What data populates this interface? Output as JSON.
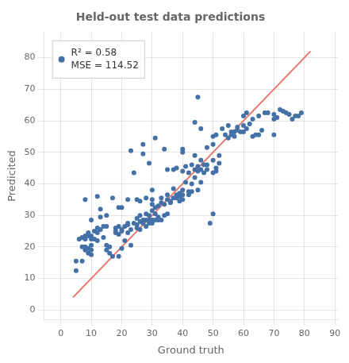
{
  "chart_data": {
    "type": "scatter",
    "title": "Held-out test data predictions",
    "xlabel": "Ground truth",
    "ylabel": "Predicited",
    "xlim": [
      -5.5,
      91
    ],
    "ylim": [
      -3,
      88
    ],
    "xticks": [
      0,
      10,
      20,
      30,
      40,
      50,
      60,
      70,
      80,
      90
    ],
    "yticks": [
      0,
      10,
      20,
      30,
      40,
      50,
      60,
      70,
      80
    ],
    "grid": true,
    "legend": "upper left",
    "series": [
      {
        "type": "line",
        "color": "#e8756a",
        "x": [
          4,
          82
        ],
        "values": [
          4,
          82
        ]
      },
      {
        "type": "scatter",
        "name": "R² = 0.58\nMSE = 114.52",
        "color": "#4470a8",
        "marker": "circle",
        "points": [
          [
            5,
            15.5
          ],
          [
            5,
            12.5
          ],
          [
            6,
            22.5
          ],
          [
            7,
            20.0
          ],
          [
            7,
            23.0
          ],
          [
            7,
            15.5
          ],
          [
            8,
            22.5
          ],
          [
            8,
            23.0
          ],
          [
            8,
            23.5
          ],
          [
            8,
            19.0
          ],
          [
            8,
            20.0
          ],
          [
            8,
            35.0
          ],
          [
            9,
            19.5
          ],
          [
            9,
            18.0
          ],
          [
            9,
            24.5
          ],
          [
            9,
            23.5
          ],
          [
            10,
            28.5
          ],
          [
            10,
            20.5
          ],
          [
            10,
            22.5
          ],
          [
            10,
            17.5
          ],
          [
            10,
            19.0
          ],
          [
            10,
            23.5
          ],
          [
            11,
            22.5
          ],
          [
            11,
            25.0
          ],
          [
            12,
            26.0
          ],
          [
            12,
            22.0
          ],
          [
            12,
            24.5
          ],
          [
            12,
            36.0
          ],
          [
            13,
            29.5
          ],
          [
            13,
            25.5
          ],
          [
            13,
            32.0
          ],
          [
            14,
            26.5
          ],
          [
            14,
            23.0
          ],
          [
            15,
            19.0
          ],
          [
            15,
            20.5
          ],
          [
            15,
            26.5
          ],
          [
            15,
            30.0
          ],
          [
            16,
            18.0
          ],
          [
            16,
            20.0
          ],
          [
            17,
            17.0
          ],
          [
            17,
            35.5
          ],
          [
            18,
            26.0
          ],
          [
            18,
            24.5
          ],
          [
            18,
            25.0
          ],
          [
            19,
            24.0
          ],
          [
            19,
            17.0
          ],
          [
            19,
            26.5
          ],
          [
            19,
            32.5
          ],
          [
            20,
            19.5
          ],
          [
            20,
            25.5
          ],
          [
            20,
            25.0
          ],
          [
            20,
            32.5
          ],
          [
            21,
            22.0
          ],
          [
            21,
            26.5
          ],
          [
            22,
            27.5
          ],
          [
            22,
            24.5
          ],
          [
            22,
            27.0
          ],
          [
            22,
            35.0
          ],
          [
            23,
            25.5
          ],
          [
            23,
            20.5
          ],
          [
            23,
            50.5
          ],
          [
            24,
            27.5
          ],
          [
            24,
            43.5
          ],
          [
            25,
            27.0
          ],
          [
            25,
            26.0
          ],
          [
            25,
            35.0
          ],
          [
            25,
            29.0
          ],
          [
            26,
            28.0
          ],
          [
            26,
            25.5
          ],
          [
            26,
            30.0
          ],
          [
            26,
            34.5
          ],
          [
            27,
            27.5
          ],
          [
            27,
            28.5
          ],
          [
            27,
            49.5
          ],
          [
            27,
            52.5
          ],
          [
            28,
            28.5
          ],
          [
            28,
            30.5
          ],
          [
            28,
            35.5
          ],
          [
            28,
            26.5
          ],
          [
            29,
            30.0
          ],
          [
            29,
            27.5
          ],
          [
            29,
            28.5
          ],
          [
            29,
            46.5
          ],
          [
            30,
            33.5
          ],
          [
            30,
            28.5
          ],
          [
            30,
            31.5
          ],
          [
            30,
            27.5
          ],
          [
            30,
            35.0
          ],
          [
            30,
            38.0
          ],
          [
            31,
            30.5
          ],
          [
            31,
            32.5
          ],
          [
            31,
            28.5
          ],
          [
            31,
            54.5
          ],
          [
            32,
            33.0
          ],
          [
            32,
            28.5
          ],
          [
            32,
            29.5
          ],
          [
            33,
            34.0
          ],
          [
            33,
            28.5
          ],
          [
            33,
            35.5
          ],
          [
            34,
            30.0
          ],
          [
            34,
            33.5
          ],
          [
            34,
            51.0
          ],
          [
            35,
            30.5
          ],
          [
            35,
            36.5
          ],
          [
            35,
            35.0
          ],
          [
            35,
            44.5
          ],
          [
            36,
            34.0
          ],
          [
            36,
            34.5
          ],
          [
            37,
            35.5
          ],
          [
            37,
            38.5
          ],
          [
            37,
            44.5
          ],
          [
            38,
            35.5
          ],
          [
            38,
            36.5
          ],
          [
            38,
            45.0
          ],
          [
            39,
            37.0
          ],
          [
            39,
            36.0
          ],
          [
            39,
            34.5
          ],
          [
            40,
            36.5
          ],
          [
            40,
            35.0
          ],
          [
            40,
            50.0
          ],
          [
            40,
            44.0
          ],
          [
            40,
            51.0
          ],
          [
            40,
            38.0
          ],
          [
            41,
            40.5
          ],
          [
            41,
            45.5
          ],
          [
            42,
            36.5
          ],
          [
            42,
            37.5
          ],
          [
            42,
            43.5
          ],
          [
            43,
            40.0
          ],
          [
            43,
            46.0
          ],
          [
            43,
            37.5
          ],
          [
            44,
            42.0
          ],
          [
            44,
            44.5
          ],
          [
            44,
            49.0
          ],
          [
            44,
            59.5
          ],
          [
            45,
            44.0
          ],
          [
            45,
            38.0
          ],
          [
            45,
            45.5
          ],
          [
            45,
            67.5
          ],
          [
            46,
            40.5
          ],
          [
            46,
            44.5
          ],
          [
            46,
            47.5
          ],
          [
            46,
            57.5
          ],
          [
            47,
            46.0
          ],
          [
            47,
            43.5
          ],
          [
            48,
            44.5
          ],
          [
            48,
            46.0
          ],
          [
            48,
            51.5
          ],
          [
            49,
            27.5
          ],
          [
            50,
            30.5
          ],
          [
            50,
            43.5
          ],
          [
            50,
            47.5
          ],
          [
            50,
            52.5
          ],
          [
            50,
            55.0
          ],
          [
            51,
            44.0
          ],
          [
            51,
            45.0
          ],
          [
            51,
            55.5
          ],
          [
            52,
            46.5
          ],
          [
            52,
            49.0
          ],
          [
            53,
            57.5
          ],
          [
            54,
            55.5
          ],
          [
            55,
            54.5
          ],
          [
            55,
            58.5
          ],
          [
            56,
            55.5
          ],
          [
            56,
            56.5
          ],
          [
            57,
            55.0
          ],
          [
            57,
            56.5
          ],
          [
            58,
            57.0
          ],
          [
            58,
            58.0
          ],
          [
            59,
            56.5
          ],
          [
            60,
            58.5
          ],
          [
            60,
            61.5
          ],
          [
            60,
            56.5
          ],
          [
            61,
            57.5
          ],
          [
            61,
            62.5
          ],
          [
            62,
            59.0
          ],
          [
            63,
            55.0
          ],
          [
            63,
            60.5
          ],
          [
            64,
            55.5
          ],
          [
            65,
            55.5
          ],
          [
            65,
            61.5
          ],
          [
            66,
            57.0
          ],
          [
            67,
            62.5
          ],
          [
            68,
            62.5
          ],
          [
            70,
            60.5
          ],
          [
            70,
            62.0
          ],
          [
            70,
            55.5
          ],
          [
            71,
            61.0
          ],
          [
            72,
            63.5
          ],
          [
            73,
            63.0
          ],
          [
            74,
            62.5
          ],
          [
            75,
            62.0
          ],
          [
            76,
            60.5
          ],
          [
            77,
            61.5
          ],
          [
            78,
            61.5
          ],
          [
            79,
            62.5
          ]
        ]
      }
    ]
  }
}
